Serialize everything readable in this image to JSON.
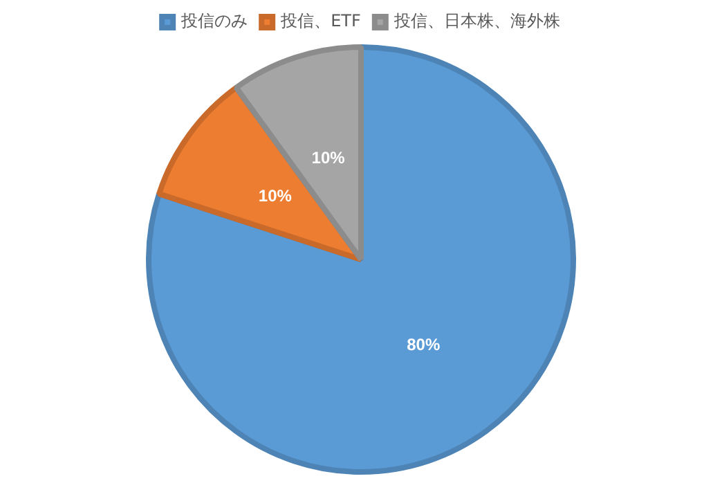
{
  "chart_data": {
    "type": "pie",
    "categories": [
      "投信のみ",
      "投信、ETF",
      "投信、日本株、海外株"
    ],
    "values": [
      80,
      10,
      10
    ],
    "value_labels": [
      "80%",
      "10%",
      "10%"
    ],
    "colors": [
      "#5b9bd5",
      "#ed7d31",
      "#a5a5a5"
    ],
    "legend": "top"
  }
}
